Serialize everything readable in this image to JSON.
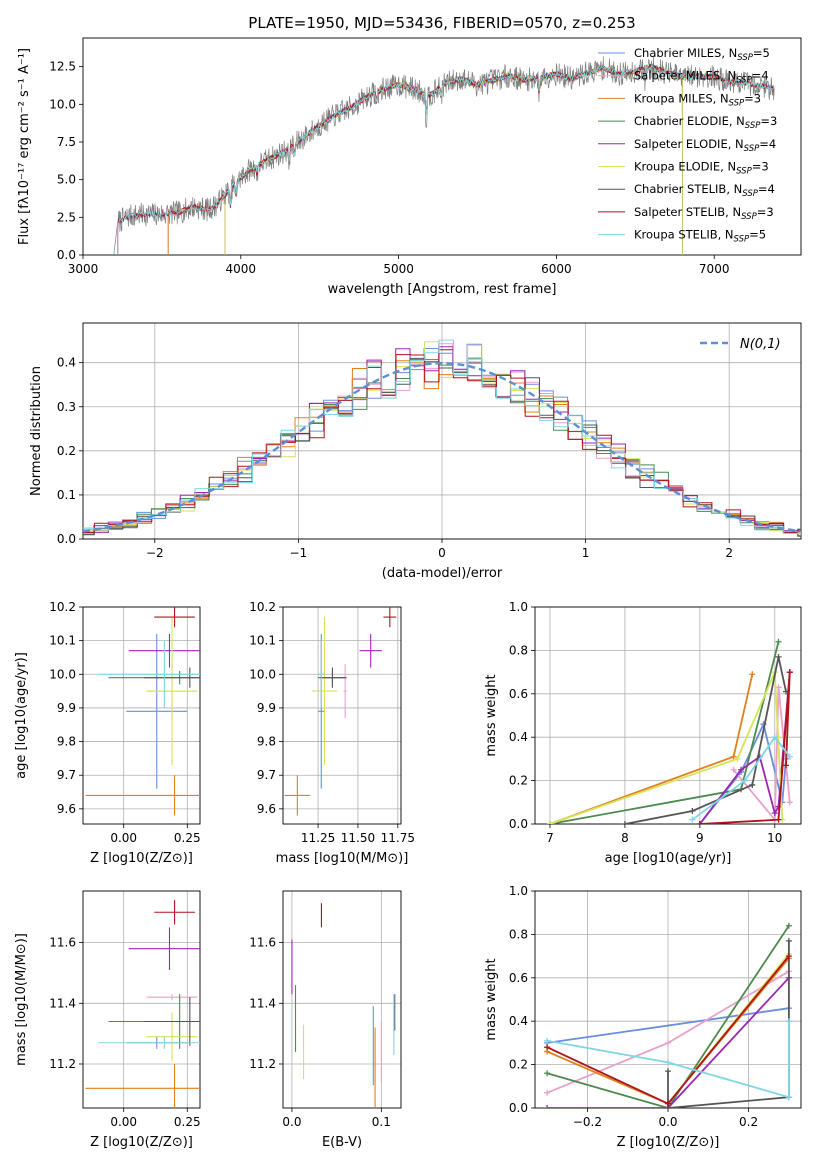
{
  "figure": {
    "title": "PLATE=1950, MJD=53436, FIBERID=0570, z=0.253"
  },
  "colors": {
    "Chabrier MILES": "#6a8edc",
    "Salpeter MILES": "#e9a1c9",
    "Kroupa MILES": "#e0801c",
    "Chabrier ELODIE": "#4c8a4f",
    "Salpeter ELODIE": "#9b26b6",
    "Kroupa ELODIE": "#d7e35a",
    "Chabrier STELIB": "#555555",
    "Salpeter STELIB": "#b0131e",
    "Kroupa STELIB": "#7fd6e3",
    "data": "#7f7f7f",
    "normal": "#5b8fd6",
    "grid": "#b0b0b0"
  },
  "chart_data": [
    {
      "id": "spectrum",
      "type": "line",
      "xlabel": "wavelength [Angstrom, rest frame]",
      "ylabel": "Flux [fλ10⁻¹⁷ erg cm⁻² s⁻¹ A⁻¹]",
      "xlim": [
        3000,
        7550
      ],
      "ylim": [
        0,
        14.4
      ],
      "xticks": [
        3000,
        4000,
        5000,
        6000,
        7000
      ],
      "yticks": [
        0.0,
        2.5,
        5.0,
        7.5,
        10.0,
        12.5
      ],
      "grid": false,
      "legend_position": "top-right",
      "legend": [
        {
          "label": "Chabrier MILES, N",
          "sub": "SSP",
          "tail": "=5",
          "color_key": "Chabrier MILES"
        },
        {
          "label": "Salpeter MILES, N",
          "sub": "SSP",
          "tail": "=4",
          "color_key": "Salpeter MILES"
        },
        {
          "label": "Kroupa MILES, N",
          "sub": "SSP",
          "tail": "=3",
          "color_key": "Kroupa MILES"
        },
        {
          "label": "Chabrier ELODIE, N",
          "sub": "SSP",
          "tail": "=3",
          "color_key": "Chabrier ELODIE"
        },
        {
          "label": "Salpeter ELODIE, N",
          "sub": "SSP",
          "tail": "=4",
          "color_key": "Salpeter ELODIE"
        },
        {
          "label": "Kroupa ELODIE, N",
          "sub": "SSP",
          "tail": "=3",
          "color_key": "Kroupa ELODIE"
        },
        {
          "label": "Chabrier STELIB, N",
          "sub": "SSP",
          "tail": "=4",
          "color_key": "Chabrier STELIB"
        },
        {
          "label": "Salpeter STELIB, N",
          "sub": "SSP",
          "tail": "=3",
          "color_key": "Salpeter STELIB"
        },
        {
          "label": "Kroupa STELIB, N",
          "sub": "SSP",
          "tail": "=5",
          "color_key": "Kroupa STELIB"
        }
      ],
      "data_curve": {
        "x": [
          3195,
          3220,
          3300,
          3400,
          3500,
          3600,
          3700,
          3800,
          3850,
          3950,
          4050,
          4150,
          4300,
          4400,
          4500,
          4600,
          4700,
          4800,
          4900,
          5000,
          5100,
          5200,
          5300,
          5400,
          5500,
          5600,
          5700,
          5800,
          5900,
          6000,
          6100,
          6200,
          6300,
          6400,
          6500,
          6600,
          6700,
          6800,
          6900,
          7000,
          7100,
          7200,
          7300,
          7380
        ],
        "y": [
          0.0,
          2.2,
          2.6,
          2.7,
          2.7,
          2.8,
          3.2,
          3.0,
          3.4,
          4.6,
          5.6,
          6.2,
          7.0,
          7.8,
          8.6,
          9.3,
          9.8,
          10.5,
          11.0,
          11.3,
          11.0,
          10.6,
          11.4,
          11.7,
          11.3,
          11.6,
          11.9,
          11.6,
          11.8,
          12.0,
          11.7,
          12.1,
          12.4,
          12.0,
          12.2,
          12.5,
          12.1,
          11.8,
          11.9,
          11.8,
          11.5,
          11.4,
          11.2,
          11.0
        ]
      },
      "model_curves": [
        {
          "name": "Chabrier MILES",
          "color_key": "Chabrier MILES",
          "x_start": 3540,
          "x_end": 7380
        },
        {
          "name": "Salpeter MILES",
          "color_key": "Salpeter MILES",
          "x_start": 3540,
          "x_end": 7380
        },
        {
          "name": "Kroupa MILES",
          "color_key": "Kroupa MILES",
          "x_start": 3540,
          "x_end": 7380
        },
        {
          "name": "Chabrier ELODIE",
          "color_key": "Chabrier ELODIE",
          "x_start": 3900,
          "x_end": 6800
        },
        {
          "name": "Salpeter ELODIE",
          "color_key": "Salpeter ELODIE",
          "x_start": 3900,
          "x_end": 6800
        },
        {
          "name": "Kroupa ELODIE",
          "color_key": "Kroupa ELODIE",
          "x_start": 3900,
          "x_end": 6800
        },
        {
          "name": "Chabrier STELIB",
          "color_key": "Chabrier STELIB",
          "x_start": 3220,
          "x_end": 7380
        },
        {
          "name": "Salpeter STELIB",
          "color_key": "Salpeter STELIB",
          "x_start": 3220,
          "x_end": 7380
        },
        {
          "name": "Kroupa STELIB",
          "color_key": "Kroupa STELIB",
          "x_start": 3220,
          "x_end": 7380
        }
      ]
    },
    {
      "id": "residual_hist",
      "type": "line",
      "xlabel": "(data-model)/error",
      "ylabel": "Normed distribution",
      "xlim": [
        -2.5,
        2.5
      ],
      "ylim": [
        0,
        0.49
      ],
      "xticks": [
        -2,
        -1,
        0,
        1,
        2
      ],
      "yticks": [
        0.0,
        0.1,
        0.2,
        0.3,
        0.4
      ],
      "grid": true,
      "legend_position": "top-right",
      "normal_label": "N(0,1)",
      "bin_width": 0.1
    },
    {
      "id": "age_vs_Z",
      "type": "scatter",
      "xlabel": "Z [log10(Z/Z⊙)]",
      "ylabel": "age  [log10(age/yr)]",
      "xlim": [
        -0.16,
        0.3
      ],
      "ylim": [
        9.555,
        10.2
      ],
      "xticks": [
        0.0,
        0.25
      ],
      "yticks": [
        9.6,
        9.7,
        9.8,
        9.9,
        10.0,
        10.1,
        10.2
      ],
      "grid": true,
      "points": [
        {
          "model": "Chabrier MILES",
          "x": 0.13,
          "xerr": 0.12,
          "y": 9.89,
          "yerr": 0.23
        },
        {
          "model": "Salpeter MILES",
          "x": 0.19,
          "xerr": 0.1,
          "y": 9.95,
          "yerr": 0.08
        },
        {
          "model": "Kroupa MILES",
          "x": 0.2,
          "xerr": 0.35,
          "y": 9.64,
          "yerr": 0.06
        },
        {
          "model": "Chabrier ELODIE",
          "x": 0.22,
          "xerr": 0.28,
          "y": 9.99,
          "yerr": 0.02
        },
        {
          "model": "Salpeter ELODIE",
          "x": 0.18,
          "xerr": 0.16,
          "y": 10.07,
          "yerr": 0.05
        },
        {
          "model": "Kroupa ELODIE",
          "x": 0.19,
          "xerr": 0.1,
          "y": 9.95,
          "yerr": 0.22
        },
        {
          "model": "Chabrier STELIB",
          "x": 0.26,
          "xerr": 0.18,
          "y": 9.99,
          "yerr": 0.03
        },
        {
          "model": "Salpeter STELIB",
          "x": 0.2,
          "xerr": 0.08,
          "y": 10.17,
          "yerr": 0.03
        },
        {
          "model": "Kroupa STELIB",
          "x": 0.16,
          "xerr": 0.26,
          "y": 10.0,
          "yerr": 0.1
        }
      ]
    },
    {
      "id": "age_vs_mass",
      "type": "scatter",
      "xlabel": "mass [log10(M/M⊙)]",
      "ylabel": "",
      "xlim": [
        11.03,
        11.77
      ],
      "ylim": [
        9.555,
        10.2
      ],
      "xticks": [
        11.25,
        11.5,
        11.75
      ],
      "yticks": [
        9.6,
        9.7,
        9.8,
        9.9,
        10.0,
        10.1,
        10.2
      ],
      "grid": true,
      "points": [
        {
          "model": "Chabrier MILES",
          "x": 11.27,
          "xerr": 0.02,
          "y": 9.89,
          "yerr": 0.23
        },
        {
          "model": "Salpeter MILES",
          "x": 11.42,
          "xerr": 0.01,
          "y": 9.95,
          "yerr": 0.08
        },
        {
          "model": "Kroupa MILES",
          "x": 11.12,
          "xerr": 0.08,
          "y": 9.64,
          "yerr": 0.06
        },
        {
          "model": "Chabrier ELODIE",
          "x": 11.34,
          "xerr": 0.09,
          "y": 9.99,
          "yerr": 0.02
        },
        {
          "model": "Salpeter ELODIE",
          "x": 11.58,
          "xerr": 0.07,
          "y": 10.07,
          "yerr": 0.05
        },
        {
          "model": "Kroupa ELODIE",
          "x": 11.29,
          "xerr": 0.08,
          "y": 9.95,
          "yerr": 0.22
        },
        {
          "model": "Chabrier STELIB",
          "x": 11.34,
          "xerr": 0.08,
          "y": 9.99,
          "yerr": 0.03
        },
        {
          "model": "Salpeter STELIB",
          "x": 11.7,
          "xerr": 0.04,
          "y": 10.17,
          "yerr": 0.03
        },
        {
          "model": "Kroupa STELIB",
          "x": 11.27,
          "xerr": 0.02,
          "y": 10.0,
          "yerr": 0.1
        }
      ]
    },
    {
      "id": "weight_vs_age",
      "type": "line",
      "xlabel": "age  [log10(age/yr)]",
      "ylabel": "mass weight",
      "xlim": [
        6.8,
        10.35
      ],
      "ylim": [
        0,
        1.0
      ],
      "xticks": [
        7,
        8,
        9,
        10
      ],
      "yticks": [
        0.0,
        0.2,
        0.4,
        0.6,
        0.8,
        1.0
      ],
      "grid": true,
      "series": [
        {
          "model": "Chabrier MILES",
          "x": [
            9.0,
            9.55,
            9.85,
            10.1,
            10.15
          ],
          "y": [
            0.0,
            0.24,
            0.46,
            0.1,
            0.3
          ]
        },
        {
          "model": "Salpeter MILES",
          "x": [
            9.45,
            10.0,
            10.05,
            10.2
          ],
          "y": [
            0.25,
            0.02,
            0.63,
            0.1
          ]
        },
        {
          "model": "Kroupa MILES",
          "x": [
            7.0,
            9.45,
            9.7
          ],
          "y": [
            0.0,
            0.31,
            0.69
          ]
        },
        {
          "model": "Chabrier ELODIE",
          "x": [
            7.0,
            9.55,
            10.05
          ],
          "y": [
            0.0,
            0.16,
            0.84
          ]
        },
        {
          "model": "Salpeter ELODIE",
          "x": [
            9.0,
            9.55,
            9.8,
            10.0,
            10.05,
            10.2
          ],
          "y": [
            0.0,
            0.25,
            0.31,
            0.05,
            0.08,
            0.7
          ]
        },
        {
          "model": "Kroupa ELODIE",
          "x": [
            7.0,
            9.5,
            10.0,
            10.1
          ],
          "y": [
            0.0,
            0.3,
            0.7,
            0.02
          ]
        },
        {
          "model": "Chabrier STELIB",
          "x": [
            8.0,
            8.9,
            9.7,
            10.05,
            10.15
          ],
          "y": [
            0.0,
            0.06,
            0.18,
            0.77,
            0.61
          ]
        },
        {
          "model": "Salpeter STELIB",
          "x": [
            9.0,
            10.05,
            10.2,
            10.15,
            10.2
          ],
          "y": [
            0.0,
            0.02,
            0.7,
            0.27,
            0.7
          ]
        },
        {
          "model": "Kroupa STELIB",
          "x": [
            8.9,
            9.6,
            10.0,
            10.2
          ],
          "y": [
            0.02,
            0.2,
            0.4,
            0.31
          ]
        }
      ]
    },
    {
      "id": "mass_vs_Z",
      "type": "scatter",
      "xlabel": "Z [log10(Z/Z⊙)]",
      "ylabel": "mass [log10(M/M⊙)]",
      "xlim": [
        -0.16,
        0.3
      ],
      "ylim": [
        11.055,
        11.77
      ],
      "xticks": [
        0.0,
        0.25
      ],
      "yticks": [
        11.2,
        11.4,
        11.6
      ],
      "grid": true,
      "points": [
        {
          "model": "Chabrier MILES",
          "x": 0.13,
          "xerr": 0.12,
          "y": 11.27,
          "yerr": 0.02
        },
        {
          "model": "Salpeter MILES",
          "x": 0.19,
          "xerr": 0.1,
          "y": 11.42,
          "yerr": 0.01
        },
        {
          "model": "Kroupa MILES",
          "x": 0.2,
          "xerr": 0.35,
          "y": 11.12,
          "yerr": 0.08
        },
        {
          "model": "Chabrier ELODIE",
          "x": 0.22,
          "xerr": 0.28,
          "y": 11.34,
          "yerr": 0.09
        },
        {
          "model": "Salpeter ELODIE",
          "x": 0.18,
          "xerr": 0.16,
          "y": 11.58,
          "yerr": 0.07
        },
        {
          "model": "Kroupa ELODIE",
          "x": 0.19,
          "xerr": 0.1,
          "y": 11.29,
          "yerr": 0.08
        },
        {
          "model": "Chabrier STELIB",
          "x": 0.26,
          "xerr": 0.18,
          "y": 11.34,
          "yerr": 0.08
        },
        {
          "model": "Salpeter STELIB",
          "x": 0.2,
          "xerr": 0.08,
          "y": 11.7,
          "yerr": 0.04
        },
        {
          "model": "Kroupa STELIB",
          "x": 0.16,
          "xerr": 0.26,
          "y": 11.27,
          "yerr": 0.02
        }
      ]
    },
    {
      "id": "mass_vs_ebv",
      "type": "scatter",
      "xlabel": "E(B-V)",
      "ylabel": "",
      "xlim": [
        -0.01,
        0.122
      ],
      "ylim": [
        11.055,
        11.77
      ],
      "xticks": [
        0.0,
        0.1
      ],
      "yticks": [
        11.2,
        11.4,
        11.6
      ],
      "grid": true,
      "points": [
        {
          "model": "Chabrier MILES",
          "x": 0.091,
          "xerr": 0.0,
          "y": 11.26,
          "yerr": 0.13
        },
        {
          "model": "Salpeter MILES",
          "x": 0.1,
          "xerr": 0.0,
          "y": 11.24,
          "yerr": 0.1
        },
        {
          "model": "Kroupa MILES",
          "x": 0.093,
          "xerr": 0.0,
          "y": 11.17,
          "yerr": 0.15
        },
        {
          "model": "Chabrier ELODIE",
          "x": 0.004,
          "xerr": 0.0,
          "y": 11.35,
          "yerr": 0.11
        },
        {
          "model": "Salpeter ELODIE",
          "x": 0.0,
          "xerr": 0.0,
          "y": 11.52,
          "yerr": 0.09
        },
        {
          "model": "Kroupa ELODIE",
          "x": 0.013,
          "xerr": 0.0,
          "y": 11.24,
          "yerr": 0.09
        },
        {
          "model": "Chabrier STELIB",
          "x": 0.115,
          "xerr": 0.0,
          "y": 11.37,
          "yerr": 0.06
        },
        {
          "model": "Salpeter STELIB",
          "x": 0.033,
          "xerr": 0.0,
          "y": 11.69,
          "yerr": 0.04
        },
        {
          "model": "Kroupa STELIB",
          "x": 0.114,
          "xerr": 0.0,
          "y": 11.33,
          "yerr": 0.1
        }
      ]
    },
    {
      "id": "weight_vs_Z",
      "type": "line",
      "xlabel": "Z [log10(Z/Z⊙)]",
      "ylabel": "mass weight",
      "xlim": [
        -0.33,
        0.33
      ],
      "ylim": [
        0,
        1.0
      ],
      "xticks": [
        -0.2,
        0.0,
        0.2
      ],
      "yticks": [
        0.0,
        0.2,
        0.4,
        0.6,
        0.8,
        1.0
      ],
      "grid": true,
      "series": [
        {
          "model": "Chabrier MILES",
          "x": [
            -0.3,
            0.3
          ],
          "y": [
            0.3,
            0.46
          ]
        },
        {
          "model": "Salpeter MILES",
          "x": [
            -0.3,
            0.0,
            0.3
          ],
          "y": [
            0.07,
            0.3,
            0.63
          ]
        },
        {
          "model": "Kroupa MILES",
          "x": [
            -0.3,
            0.0,
            0.3
          ],
          "y": [
            0.26,
            0.02,
            0.69
          ]
        },
        {
          "model": "Chabrier ELODIE",
          "x": [
            -0.3,
            0.0,
            0.3
          ],
          "y": [
            0.16,
            0.0,
            0.84
          ]
        },
        {
          "model": "Salpeter ELODIE",
          "x": [
            -0.3,
            0.0,
            0.3
          ],
          "y": [
            0.0,
            0.0,
            0.6
          ]
        },
        {
          "model": "Kroupa ELODIE",
          "x": [
            -0.3,
            0.0,
            0.3
          ],
          "y": [
            0.28,
            0.02,
            0.71
          ]
        },
        {
          "model": "Chabrier STELIB",
          "x": [
            0.0,
            0.0,
            0.3,
            0.3
          ],
          "y": [
            0.17,
            0.0,
            0.05,
            0.77
          ]
        },
        {
          "model": "Salpeter STELIB",
          "x": [
            -0.3,
            0.0,
            0.3
          ],
          "y": [
            0.28,
            0.02,
            0.7
          ]
        },
        {
          "model": "Kroupa STELIB",
          "x": [
            -0.3,
            0.0,
            0.3,
            0.3
          ],
          "y": [
            0.31,
            0.21,
            0.05,
            0.4
          ]
        }
      ]
    }
  ]
}
